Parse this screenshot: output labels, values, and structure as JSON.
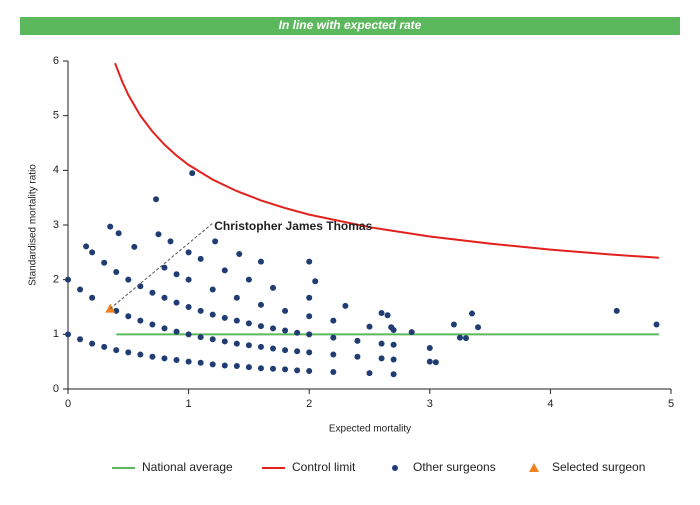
{
  "chart_data": {
    "type": "scatter",
    "title": "In line with expected rate",
    "x_label": "Expected mortality",
    "y_label": "Standardised mortality ratio",
    "annotation": "Christopher James Thomas",
    "xlim": [
      0,
      5
    ],
    "xticks": [
      0,
      1,
      2,
      3,
      4,
      5
    ],
    "ylim": [
      0,
      6
    ],
    "yticks": [
      0,
      1,
      2,
      3,
      4,
      5,
      6
    ],
    "grid": false,
    "series": [
      {
        "name": "National average",
        "type": "line",
        "color": "#5cb85c",
        "x": [
          0.4,
          4.9
        ],
        "values": [
          1,
          1
        ]
      },
      {
        "name": "Control limit",
        "type": "line",
        "color": "#e3211c",
        "x": [
          0.39,
          0.45,
          0.5,
          0.6,
          0.7,
          0.8,
          0.9,
          1.0,
          1.2,
          1.4,
          1.6,
          1.8,
          2.0,
          2.5,
          3.0,
          3.5,
          4.0,
          4.5,
          4.9
        ],
        "values": [
          5.96,
          5.62,
          5.38,
          5.0,
          4.71,
          4.47,
          4.27,
          4.1,
          3.83,
          3.62,
          3.45,
          3.31,
          3.19,
          2.96,
          2.79,
          2.66,
          2.55,
          2.46,
          2.4
        ]
      },
      {
        "name": "Other surgeons",
        "type": "dot",
        "color": "#1f3d73",
        "x": [
          0,
          0.1,
          0.2,
          0.3,
          0.4,
          0.5,
          0.6,
          0.7,
          0.8,
          0.9,
          1.0,
          1.1,
          1.2,
          1.3,
          1.4,
          1.5,
          1.6,
          1.7,
          1.8,
          1.9,
          2.0,
          2.2,
          2.5,
          2.7,
          0,
          0.1,
          0.2,
          0.4,
          0.5,
          0.6,
          0.7,
          0.8,
          0.9,
          1.0,
          1.1,
          1.2,
          1.3,
          1.4,
          1.5,
          1.6,
          1.7,
          1.8,
          1.9,
          2.0,
          2.2,
          2.4,
          2.6,
          2.7,
          3.0,
          3.05,
          0.15,
          0.2,
          0.3,
          0.4,
          0.5,
          0.6,
          0.7,
          0.8,
          0.9,
          1.0,
          1.1,
          1.2,
          1.3,
          1.4,
          1.5,
          1.6,
          1.7,
          1.8,
          1.9,
          2.0,
          2.2,
          2.4,
          2.6,
          2.7,
          3.0,
          3.25,
          0.35,
          0.42,
          0.55,
          0.8,
          0.9,
          1.0,
          1.2,
          1.4,
          1.6,
          1.8,
          2.0,
          2.2,
          2.5,
          2.7,
          0.75,
          0.85,
          1.0,
          1.1,
          1.3,
          1.5,
          1.7,
          2.0,
          2.3,
          2.6,
          0.73,
          1.03,
          1.22,
          1.42,
          1.6,
          2.0,
          2.05,
          2.65,
          2.68,
          3.2,
          3.35,
          3.4,
          4.55,
          4.88,
          2.85,
          3.3
        ],
        "values": [
          1,
          0.91,
          0.83,
          0.77,
          0.71,
          0.67,
          0.63,
          0.59,
          0.56,
          0.53,
          0.5,
          0.48,
          0.45,
          0.43,
          0.42,
          0.4,
          0.38,
          0.37,
          0.36,
          0.34,
          0.33,
          0.31,
          0.29,
          0.27,
          2,
          1.82,
          1.67,
          1.43,
          1.33,
          1.25,
          1.18,
          1.11,
          1.05,
          1.0,
          0.95,
          0.91,
          0.87,
          0.83,
          0.8,
          0.77,
          0.74,
          0.71,
          0.69,
          0.67,
          0.63,
          0.59,
          0.56,
          0.54,
          0.5,
          0.49,
          2.61,
          2.5,
          2.31,
          2.14,
          2.0,
          1.88,
          1.76,
          1.67,
          1.58,
          1.5,
          1.43,
          1.36,
          1.3,
          1.25,
          1.2,
          1.15,
          1.11,
          1.07,
          1.03,
          1.0,
          0.94,
          0.88,
          0.83,
          0.81,
          0.75,
          0.94,
          2.97,
          2.85,
          2.6,
          2.22,
          2.1,
          2.0,
          1.82,
          1.67,
          1.54,
          1.43,
          1.33,
          1.25,
          1.14,
          1.08,
          2.83,
          2.7,
          2.5,
          2.38,
          2.17,
          2.0,
          1.85,
          1.67,
          1.52,
          1.39,
          3.47,
          3.95,
          2.7,
          2.47,
          2.33,
          2.33,
          1.97,
          1.35,
          1.13,
          1.18,
          1.38,
          1.13,
          1.43,
          1.18,
          1.04,
          0.93
        ]
      },
      {
        "name": "Selected surgeon",
        "type": "triangle",
        "color": "#f0821e",
        "x": [
          0.35
        ],
        "values": [
          1.47
        ]
      }
    ]
  }
}
